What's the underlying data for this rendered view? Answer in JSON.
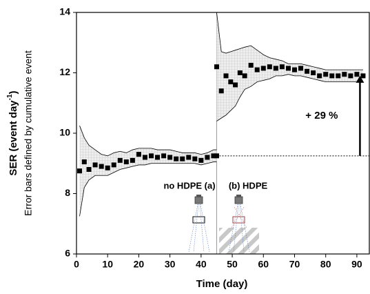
{
  "chart_data": {
    "type": "scatter",
    "x_label": "Time (day)",
    "y_label": {
      "text": "SER (event day",
      "superscript": "-1",
      "suffix": ")"
    },
    "y_sublabel": "Error bars defined by cumulative event",
    "xlim": [
      0,
      94
    ],
    "xticks": [
      0,
      10,
      20,
      30,
      40,
      50,
      60,
      70,
      80,
      90
    ],
    "ylim": [
      6,
      14
    ],
    "yticks": [
      6,
      8,
      10,
      12,
      14
    ],
    "marker_color": "#000000",
    "band_color": "#e6e6e6",
    "series": [
      {
        "x": [
          1,
          2.5,
          4,
          6,
          8,
          10,
          12,
          14,
          16,
          18,
          20,
          22,
          24,
          26,
          28,
          30,
          32,
          34,
          36,
          38,
          40,
          42,
          44,
          45
        ],
        "values": [
          8.75,
          9.05,
          8.8,
          8.95,
          8.9,
          8.85,
          8.95,
          9.1,
          9.05,
          9.1,
          9.3,
          9.2,
          9.25,
          9.2,
          9.25,
          9.2,
          9.15,
          9.15,
          9.2,
          9.15,
          9.1,
          9.2,
          9.25,
          9.25
        ],
        "lower": [
          7.25,
          8.2,
          8.45,
          8.6,
          8.6,
          8.6,
          8.7,
          8.8,
          8.85,
          8.9,
          8.95,
          8.95,
          9.0,
          9.0,
          9.0,
          9.0,
          9.0,
          9.0,
          9.0,
          9.0,
          8.95,
          9.0,
          9.05,
          9.05
        ],
        "upper": [
          10.25,
          9.85,
          9.6,
          9.45,
          9.3,
          9.25,
          9.35,
          9.4,
          9.35,
          9.45,
          9.5,
          9.5,
          9.5,
          9.45,
          9.45,
          9.45,
          9.4,
          9.35,
          9.35,
          9.35,
          9.3,
          9.35,
          9.45,
          9.45
        ]
      },
      {
        "x": [
          45,
          46.5,
          48,
          49.5,
          51,
          52.5,
          54,
          56,
          58,
          60,
          62,
          64,
          66,
          68,
          70,
          72,
          74,
          76,
          78,
          80,
          82,
          84,
          86,
          88,
          90,
          92
        ],
        "values": [
          12.2,
          11.4,
          11.9,
          11.7,
          11.6,
          12.0,
          11.9,
          12.25,
          12.1,
          12.15,
          12.2,
          12.15,
          12.2,
          12.15,
          12.1,
          12.15,
          12.05,
          12.0,
          11.9,
          11.95,
          11.9,
          11.9,
          11.95,
          11.9,
          11.95,
          11.9
        ],
        "lower": [
          10.4,
          10.5,
          10.6,
          10.75,
          10.9,
          11.2,
          11.45,
          11.55,
          11.7,
          11.75,
          11.8,
          11.9,
          11.9,
          11.95,
          11.9,
          11.9,
          11.85,
          11.8,
          11.75,
          11.7,
          11.7,
          11.7,
          11.7,
          11.7,
          11.7,
          11.7
        ],
        "upper": [
          14.0,
          12.7,
          12.65,
          12.7,
          12.75,
          12.8,
          12.85,
          12.9,
          12.75,
          12.6,
          12.5,
          12.45,
          12.4,
          12.3,
          12.3,
          12.3,
          12.25,
          12.2,
          12.15,
          12.1,
          12.1,
          12.1,
          12.1,
          12.1,
          12.1,
          12.1
        ]
      }
    ],
    "divider_x": 45,
    "reference_y": 9.25,
    "arrow": {
      "x": 91,
      "from": 9.25,
      "to": 11.9,
      "label": "+ 29 %"
    },
    "condition_labels": [
      "no HDPE (a)",
      "(b) HDPE"
    ]
  }
}
